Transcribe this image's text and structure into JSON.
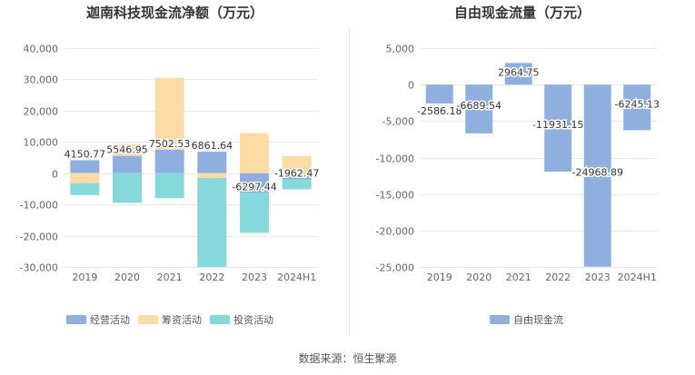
{
  "colors": {
    "operating": "#8fb0df",
    "financing": "#fddba4",
    "investing": "#86d8da",
    "fcf": "#8fb0df",
    "grid": "#e8e8e8",
    "axis_text": "#666666"
  },
  "chart_data": [
    {
      "type": "bar",
      "stacked": true,
      "title": "迦南科技现金流净额（万元）",
      "categories": [
        "2019",
        "2020",
        "2021",
        "2022",
        "2023",
        "2024H1"
      ],
      "ylim": [
        -30000,
        40000
      ],
      "yticks": [
        "40,000",
        "30,000",
        "20,000",
        "10,000",
        "0",
        "-10,000",
        "-20,000",
        "-30,000"
      ],
      "ytick_values": [
        40000,
        30000,
        20000,
        10000,
        0,
        -10000,
        -20000,
        -30000
      ],
      "series": [
        {
          "name": "经营活动",
          "values": [
            4150.77,
            5546.95,
            7502.53,
            6861.64,
            -6297.44,
            -1962.47
          ]
        },
        {
          "name": "筹资活动",
          "values": [
            -3200,
            3800,
            23000,
            -1500,
            12800,
            5500
          ]
        },
        {
          "name": "投资活动",
          "values": [
            -3800,
            -9500,
            -8000,
            -28500,
            -12800,
            -3200
          ]
        }
      ],
      "data_labels": [
        "4150.77",
        "5546.95",
        "7502.53",
        "6861.64",
        "-6297.44",
        "-1962.47"
      ],
      "legend_position": "bottom"
    },
    {
      "type": "bar",
      "title": "自由现金流量（万元）",
      "categories": [
        "2019",
        "2020",
        "2021",
        "2022",
        "2023",
        "2024H1"
      ],
      "ylim": [
        -25000,
        5000
      ],
      "yticks": [
        "5,000",
        "0",
        "-5,000",
        "-10,000",
        "-15,000",
        "-20,000",
        "-25,000"
      ],
      "ytick_values": [
        5000,
        0,
        -5000,
        -10000,
        -15000,
        -20000,
        -25000
      ],
      "series": [
        {
          "name": "自由现金流",
          "values": [
            -2586.18,
            -6689.54,
            2964.75,
            -11931.15,
            -24968.89,
            -6245.13
          ]
        }
      ],
      "data_labels": [
        "-2586.18",
        "-6689.54",
        "2964.75",
        "-11931.15",
        "-24968.89",
        "-6245.13"
      ],
      "legend_position": "bottom"
    }
  ],
  "footer": {
    "source": "数据来源：恒生聚源"
  }
}
